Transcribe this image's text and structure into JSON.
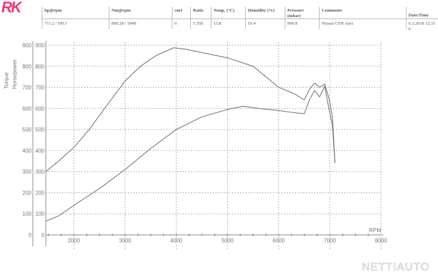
{
  "logo": "RK",
  "header": {
    "columns": [
      "hp@rpm",
      "Nm@rpm",
      "cm3",
      "Ratio",
      "Temp. (°C)",
      "Humidity (%)",
      "Pressure (mbar)",
      "Comments",
      "Date/Time"
    ],
    "values": [
      "711.2 / 6913",
      "890.28 / 3948",
      "0",
      "3.358",
      "15.8",
      "10.4",
      "996.8",
      "Nissan GTR  Alex",
      "6.3.2018 12.31 6"
    ]
  },
  "watermark": "NETTIAUTO",
  "chart_data": {
    "type": "line",
    "xlabel": "RPM",
    "ylabel_left": "Torque",
    "ylabel_right": "Horsepower",
    "xlim": [
      1450,
      8000
    ],
    "ylim": [
      0,
      900
    ],
    "x_ticks": [
      2000,
      3000,
      4000,
      5000,
      6000,
      7000,
      8000
    ],
    "y_ticks": [
      0,
      100,
      200,
      300,
      400,
      500,
      600,
      700,
      800,
      900
    ],
    "grid": true,
    "series": [
      {
        "name": "Torque",
        "x": [
          1450,
          1700,
          2000,
          2300,
          2600,
          3000,
          3300,
          3600,
          3950,
          4200,
          4500,
          5000,
          5500,
          5800,
          6000,
          6300,
          6500,
          6600,
          6700,
          6800,
          6900,
          6980,
          7050,
          7100
        ],
        "y": [
          300,
          350,
          415,
          500,
          600,
          730,
          800,
          850,
          888,
          880,
          865,
          840,
          800,
          740,
          700,
          670,
          640,
          690,
          720,
          700,
          715,
          650,
          560,
          340
        ]
      },
      {
        "name": "Horsepower",
        "x": [
          1450,
          1700,
          2000,
          2500,
          3000,
          3500,
          4000,
          4500,
          5000,
          5300,
          5600,
          6000,
          6300,
          6500,
          6600,
          6700,
          6800,
          6900,
          6980,
          7050,
          7100
        ],
        "y": [
          65,
          90,
          140,
          220,
          310,
          410,
          500,
          560,
          595,
          610,
          600,
          590,
          580,
          575,
          640,
          685,
          655,
          705,
          600,
          520,
          340
        ]
      }
    ]
  }
}
